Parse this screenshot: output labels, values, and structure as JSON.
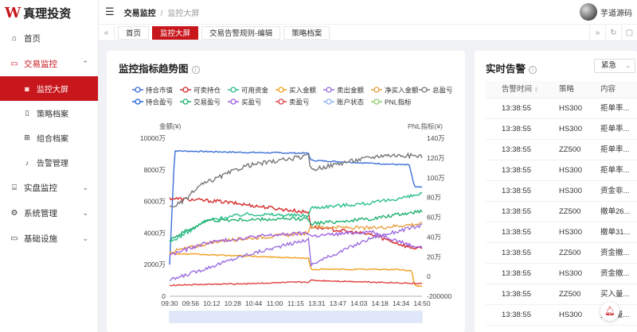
{
  "app": {
    "logo_mark": "W",
    "name": "真理投资"
  },
  "sidebar": {
    "items": [
      {
        "label": "首页",
        "icon": "home-icon"
      },
      {
        "label": "交易监控",
        "icon": "card-icon",
        "expanded": true,
        "children": [
          {
            "label": "监控大屏",
            "icon": "camera-icon",
            "active": true
          },
          {
            "label": "策略档案",
            "icon": "file-icon"
          },
          {
            "label": "组合档案",
            "icon": "grid-icon"
          },
          {
            "label": "告警管理",
            "icon": "bell-icon"
          }
        ]
      },
      {
        "label": "实盘监控",
        "icon": "bank-icon"
      },
      {
        "label": "系统管理",
        "icon": "gear-icon"
      },
      {
        "label": "基础设施",
        "icon": "monitor-icon"
      }
    ]
  },
  "header": {
    "breadcrumb_parent": "交易监控",
    "breadcrumb_current": "监控大屏",
    "user_name": "芋道源码"
  },
  "tabs": [
    {
      "label": "首页",
      "active": false
    },
    {
      "label": "监控大屏",
      "active": true
    },
    {
      "label": "交易告警规则-编辑",
      "active": false
    },
    {
      "label": "策略档案",
      "active": false
    }
  ],
  "chart_card": {
    "title": "监控指标趋势图"
  },
  "chart_data": {
    "type": "line",
    "legend": [
      {
        "name": "持合市值",
        "color": "#3a6fd8"
      },
      {
        "name": "可卖持仓",
        "color": "#d42a2a"
      },
      {
        "name": "可用资金",
        "color": "#2bbf8a"
      },
      {
        "name": "买入金额",
        "color": "#f0a020"
      },
      {
        "name": "卖出金额",
        "color": "#9b6fe0"
      },
      {
        "name": "净买入金额",
        "color": "#e8a040"
      },
      {
        "name": "总盈亏",
        "color": "#777777"
      },
      {
        "name": "持合盈亏",
        "color": "#2266dd"
      },
      {
        "name": "交易盈亏",
        "color": "#20b070"
      },
      {
        "name": "买盈亏",
        "color": "#a060e0"
      },
      {
        "name": "卖盈亏",
        "color": "#e04040"
      },
      {
        "name": "账户状态",
        "color": "#8ab4f0"
      },
      {
        "name": "PNL指标",
        "color": "#8fd070"
      }
    ],
    "left_axis_label": "金额(¥)",
    "right_axis_label": "PNL指标(¥)",
    "left_ticks": [
      "10000万",
      "8000万",
      "6000万",
      "4000万",
      "2000万",
      "0"
    ],
    "right_ticks": [
      "140万",
      "120万",
      "100万",
      "80万",
      "60万",
      "40万",
      "20万",
      "0",
      "-200000"
    ],
    "x_ticks": [
      "09:30",
      "09:56",
      "10:12",
      "10:28",
      "10:44",
      "11:00",
      "11:15",
      "13:31",
      "13:47",
      "14:03",
      "14:18",
      "14:34",
      "14:50"
    ],
    "ylim_left": [
      0,
      10000
    ],
    "ylim_right": [
      -20,
      140
    ],
    "series": [
      {
        "name": "持合市值",
        "color": "#3a6fd8",
        "axis": "left",
        "points": [
          [
            0,
            2000
          ],
          [
            0.02,
            9200
          ],
          [
            0.3,
            9100
          ],
          [
            0.55,
            9050
          ],
          [
            0.56,
            8600
          ],
          [
            0.95,
            8300
          ],
          [
            0.97,
            6900
          ],
          [
            1,
            6900
          ]
        ]
      },
      {
        "name": "可卖持仓",
        "color": "#d42a2a",
        "axis": "left",
        "points": [
          [
            0,
            6200
          ],
          [
            0.2,
            6000
          ],
          [
            0.55,
            5300
          ],
          [
            0.56,
            4400
          ],
          [
            0.8,
            3900
          ],
          [
            0.95,
            3100
          ],
          [
            1,
            3000
          ]
        ]
      },
      {
        "name": "可用资金",
        "color": "#2bbf8a",
        "axis": "left",
        "points": [
          [
            0,
            3400
          ],
          [
            0.15,
            4800
          ],
          [
            0.3,
            5200
          ],
          [
            0.55,
            5100
          ],
          [
            0.56,
            5600
          ],
          [
            0.8,
            5900
          ],
          [
            0.95,
            6300
          ],
          [
            1,
            6500
          ]
        ]
      },
      {
        "name": "买入金额",
        "color": "#f0a020",
        "axis": "left",
        "points": [
          [
            0,
            2700
          ],
          [
            0.2,
            2600
          ],
          [
            0.55,
            2400
          ],
          [
            0.56,
            1700
          ],
          [
            0.9,
            1700
          ],
          [
            0.96,
            1600
          ],
          [
            0.97,
            700
          ],
          [
            1,
            600
          ]
        ]
      },
      {
        "name": "卖出金额",
        "color": "#9b6fe0",
        "axis": "left",
        "points": [
          [
            0,
            1000
          ],
          [
            0.3,
            2600
          ],
          [
            0.55,
            3600
          ],
          [
            0.56,
            2000
          ],
          [
            0.8,
            3700
          ],
          [
            1,
            4500
          ]
        ]
      },
      {
        "name": "净买入金额",
        "color": "#e8a040",
        "axis": "left",
        "points": [
          [
            0,
            2800
          ],
          [
            0.2,
            3500
          ],
          [
            0.55,
            4000
          ],
          [
            0.56,
            4400
          ],
          [
            0.8,
            4300
          ],
          [
            1,
            4600
          ]
        ]
      },
      {
        "name": "总盈亏",
        "color": "#777777",
        "axis": "right",
        "points": [
          [
            0,
            70
          ],
          [
            0.05,
            75
          ],
          [
            0.12,
            92
          ],
          [
            0.3,
            112
          ],
          [
            0.55,
            122
          ],
          [
            0.56,
            108
          ],
          [
            0.7,
            116
          ],
          [
            0.85,
            123
          ],
          [
            1,
            122
          ]
        ]
      },
      {
        "name": "交易盈亏",
        "color": "#20b070",
        "axis": "left",
        "points": [
          [
            0,
            3600
          ],
          [
            0.15,
            4800
          ],
          [
            0.55,
            4900
          ],
          [
            0.56,
            4600
          ],
          [
            0.8,
            4900
          ],
          [
            1,
            5400
          ]
        ]
      },
      {
        "name": "买盈亏",
        "color": "#a060e0",
        "axis": "left",
        "points": [
          [
            0,
            2600
          ],
          [
            0.15,
            3400
          ],
          [
            0.35,
            3800
          ],
          [
            0.55,
            4000
          ],
          [
            0.56,
            3800
          ],
          [
            0.8,
            4100
          ],
          [
            0.96,
            3200
          ],
          [
            1,
            3100
          ]
        ]
      },
      {
        "name": "卖盈亏",
        "color": "#e04040",
        "axis": "left",
        "points": [
          [
            0,
            700
          ],
          [
            0.3,
            800
          ],
          [
            0.55,
            900
          ],
          [
            0.56,
            1000
          ],
          [
            0.8,
            900
          ],
          [
            1,
            800
          ]
        ]
      }
    ]
  },
  "alert_card": {
    "title": "实时告警",
    "filter": "紧急",
    "columns": [
      "告警时间",
      "策略",
      "内容"
    ],
    "rows": [
      {
        "time": "13:38:55",
        "strategy": "HS300",
        "content": "拒单率..."
      },
      {
        "time": "13:38:55",
        "strategy": "HS300",
        "content": "拒单率..."
      },
      {
        "time": "13:38:55",
        "strategy": "ZZ500",
        "content": "拒单率..."
      },
      {
        "time": "13:38:55",
        "strategy": "HS300",
        "content": "拒单率..."
      },
      {
        "time": "13:38:55",
        "strategy": "HS300",
        "content": "资金非..."
      },
      {
        "time": "13:38:55",
        "strategy": "ZZ500",
        "content": "撤单26..."
      },
      {
        "time": "13:38:55",
        "strategy": "HS300",
        "content": "撤单31..."
      },
      {
        "time": "13:38:55",
        "strategy": "ZZ500",
        "content": "资金撤..."
      },
      {
        "time": "13:38:55",
        "strategy": "HS300",
        "content": "资金撤..."
      },
      {
        "time": "13:38:55",
        "strategy": "ZZ500",
        "content": "买入量..."
      },
      {
        "time": "13:38:55",
        "strategy": "HS300",
        "content": "买入量..."
      }
    ]
  }
}
